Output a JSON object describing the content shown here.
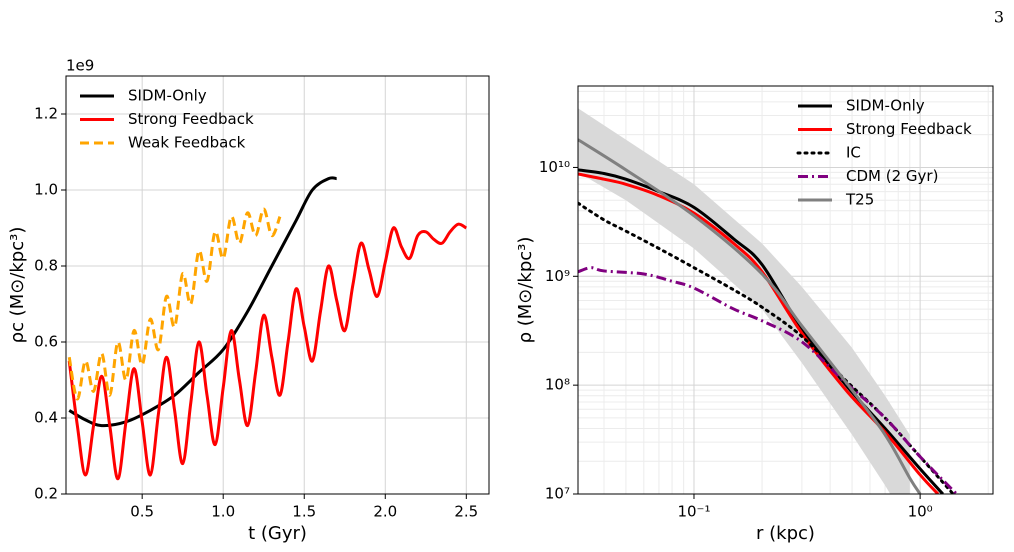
{
  "page_number": "3",
  "chart_data": [
    {
      "type": "line",
      "x_label": "t (Gyr)",
      "y_label": "ρc (M⊙/kpc³)",
      "y_offset_label": "1e9",
      "xlim": [
        0.03,
        2.64
      ],
      "ylim": [
        0.2,
        1.3
      ],
      "xticks": [
        0.5,
        {
          "value": 1,
          "label": "1.0"
        },
        1.5,
        {
          "value": 2,
          "label": "2.0"
        },
        2.5
      ],
      "yticks": [
        0.2,
        0.4,
        0.6,
        0.8,
        {
          "value": 1,
          "label": "1.0"
        },
        1.2
      ],
      "grid": true,
      "legend": "upper left",
      "series": [
        {
          "name": "SIDM-Only",
          "color": "#000000",
          "linestyle": "solid",
          "x": [
            0.05,
            0.15,
            0.25,
            0.4,
            0.55,
            0.7,
            0.85,
            1.0,
            1.15,
            1.3,
            1.45,
            1.55,
            1.65,
            1.7
          ],
          "values": [
            0.42,
            0.395,
            0.38,
            0.39,
            0.42,
            0.46,
            0.52,
            0.58,
            0.68,
            0.8,
            0.92,
            1.0,
            1.03,
            1.03
          ]
        },
        {
          "name": "Strong Feedback",
          "color": "#ff0000",
          "linestyle": "solid",
          "x": [
            0.05,
            0.1,
            0.15,
            0.2,
            0.25,
            0.3,
            0.35,
            0.4,
            0.45,
            0.5,
            0.55,
            0.6,
            0.65,
            0.7,
            0.75,
            0.8,
            0.85,
            0.9,
            0.95,
            1.0,
            1.05,
            1.1,
            1.15,
            1.2,
            1.25,
            1.3,
            1.35,
            1.4,
            1.45,
            1.5,
            1.55,
            1.6,
            1.65,
            1.7,
            1.75,
            1.8,
            1.85,
            1.9,
            1.95,
            2.0,
            2.05,
            2.1,
            2.15,
            2.2,
            2.25,
            2.3,
            2.35,
            2.4,
            2.45,
            2.5
          ],
          "values": [
            0.55,
            0.38,
            0.25,
            0.38,
            0.51,
            0.38,
            0.24,
            0.39,
            0.53,
            0.39,
            0.25,
            0.41,
            0.56,
            0.42,
            0.28,
            0.44,
            0.6,
            0.46,
            0.33,
            0.48,
            0.63,
            0.5,
            0.38,
            0.52,
            0.67,
            0.56,
            0.46,
            0.6,
            0.74,
            0.64,
            0.55,
            0.68,
            0.8,
            0.71,
            0.63,
            0.75,
            0.86,
            0.79,
            0.72,
            0.81,
            0.9,
            0.85,
            0.82,
            0.88,
            0.89,
            0.87,
            0.86,
            0.89,
            0.91,
            0.9
          ]
        },
        {
          "name": "Weak Feedback",
          "color": "#ffa500",
          "linestyle": "dashed",
          "x": [
            0.05,
            0.1,
            0.15,
            0.2,
            0.25,
            0.3,
            0.35,
            0.4,
            0.45,
            0.5,
            0.55,
            0.6,
            0.65,
            0.7,
            0.75,
            0.8,
            0.85,
            0.9,
            0.95,
            1.0,
            1.05,
            1.1,
            1.15,
            1.2,
            1.25,
            1.3,
            1.35
          ],
          "values": [
            0.56,
            0.45,
            0.55,
            0.47,
            0.57,
            0.46,
            0.6,
            0.5,
            0.63,
            0.54,
            0.66,
            0.58,
            0.72,
            0.64,
            0.78,
            0.7,
            0.84,
            0.76,
            0.89,
            0.82,
            0.93,
            0.86,
            0.94,
            0.88,
            0.95,
            0.88,
            0.93
          ]
        }
      ]
    },
    {
      "type": "line",
      "x_label": "r (kpc)",
      "y_label": "ρ (M⊙/kpc³)",
      "xscale": "log",
      "yscale": "log",
      "xlim": [
        0.0307,
        2.1
      ],
      "ylim": [
        10000000,
        56000000000
      ],
      "xticks": [
        {
          "value": 0.1,
          "label": "10⁻¹"
        },
        {
          "value": 1,
          "label": "10⁰"
        }
      ],
      "yticks": [
        {
          "value": 10000000,
          "label": "10⁷"
        },
        {
          "value": 100000000,
          "label": "10⁸"
        },
        {
          "value": 1000000000,
          "label": "10⁹"
        },
        {
          "value": 10000000000,
          "label": "10¹⁰"
        }
      ],
      "xticks_minor": [
        0.04,
        0.05,
        0.06,
        0.07,
        0.08,
        0.09,
        0.2,
        0.3,
        0.4,
        0.5,
        0.6,
        0.7,
        0.8,
        0.9,
        2
      ],
      "yticks_minor": [
        20000000,
        30000000,
        40000000,
        50000000,
        60000000,
        70000000,
        80000000,
        90000000,
        200000000,
        300000000,
        400000000,
        500000000,
        600000000,
        700000000,
        800000000,
        900000000,
        2000000000,
        3000000000,
        4000000000,
        5000000000,
        6000000000,
        7000000000,
        8000000000,
        9000000000,
        20000000000,
        30000000000,
        40000000000,
        50000000000
      ],
      "grid": true,
      "legend": "upper right",
      "band": {
        "color": "#d9d9d9",
        "x": [
          0.0307,
          0.05,
          0.1,
          0.2,
          0.3,
          0.5,
          0.7,
          0.9
        ],
        "upper": [
          35000000000,
          18000000000,
          7000000000,
          2000000000,
          800000000,
          220000000,
          80000000,
          35000000
        ],
        "lower": [
          9000000000,
          5000000000,
          1800000000,
          500000000,
          160000000,
          35000000,
          12000000,
          5000000
        ]
      },
      "series": [
        {
          "name": "SIDM-Only",
          "color": "#000000",
          "linestyle": "solid",
          "x": [
            0.0307,
            0.04,
            0.05,
            0.07,
            0.1,
            0.15,
            0.2,
            0.3,
            0.47,
            0.7,
            1.0,
            1.26
          ],
          "values": [
            9500000000,
            8800000000,
            7800000000,
            6000000000,
            4300000000,
            2200000000,
            1280000000,
            330000000,
            100000000,
            40000000,
            17000000,
            10000000
          ]
        },
        {
          "name": "Strong Feedback",
          "color": "#ff0000",
          "linestyle": "solid",
          "x": [
            0.0307,
            0.04,
            0.05,
            0.07,
            0.1,
            0.15,
            0.2,
            0.3,
            0.47,
            0.7,
            1.0,
            1.2
          ],
          "values": [
            8700000000,
            7800000000,
            7000000000,
            5500000000,
            3800000000,
            2000000000,
            1100000000,
            300000000,
            90000000,
            37000000,
            15000000,
            10000000
          ]
        },
        {
          "name": "IC",
          "color": "#000000",
          "linestyle": "dotted",
          "x": [
            0.0307,
            0.04,
            0.05,
            0.07,
            0.1,
            0.15,
            0.2,
            0.3,
            0.47,
            0.7,
            1.0,
            1.4
          ],
          "values": [
            4700000000,
            3300000000,
            2600000000,
            1800000000,
            1200000000,
            750000000,
            520000000,
            280000000,
            110000000,
            50000000,
            22000000,
            10000000
          ]
        },
        {
          "name": "CDM (2 Gyr)",
          "color": "#800080",
          "linestyle": "dashdot",
          "x": [
            0.0307,
            0.035,
            0.04,
            0.06,
            0.08,
            0.1,
            0.15,
            0.2,
            0.3,
            0.47,
            0.7,
            1.0,
            1.45
          ],
          "values": [
            1100000000,
            1200000000,
            1120000000,
            1050000000,
            900000000,
            780000000,
            500000000,
            390000000,
            250000000,
            105000000,
            50000000,
            22000000,
            10000000
          ]
        },
        {
          "name": "T25",
          "color": "#808080",
          "linestyle": "solid",
          "x": [
            0.0307,
            0.05,
            0.1,
            0.2,
            0.3,
            0.5,
            0.7,
            0.9,
            1.0
          ],
          "values": [
            18000000000,
            9500000000,
            3600000000,
            1050000000,
            350000000,
            90000000,
            35000000,
            14000000,
            10000000
          ]
        }
      ]
    }
  ]
}
